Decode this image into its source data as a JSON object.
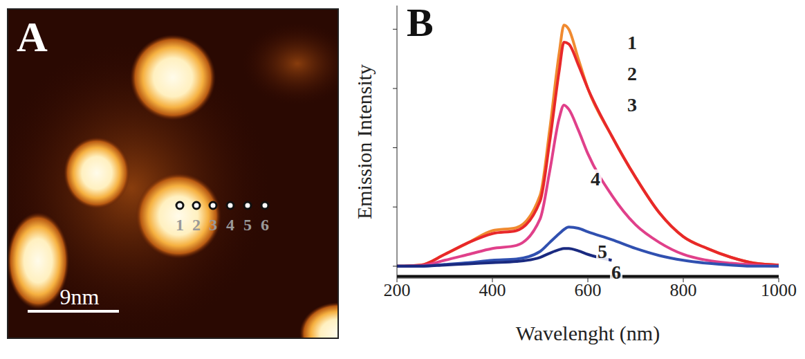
{
  "chart_data": [
    {
      "type": "image",
      "panel": "A",
      "scale_bar": "9nm",
      "point_labels": [
        "1",
        "2",
        "3",
        "4",
        "5",
        "6"
      ]
    },
    {
      "type": "line",
      "panel": "B",
      "x_label": "Wavelenght (nm)",
      "y_label": "Emission Intensity",
      "x": [
        200,
        250,
        300,
        350,
        400,
        450,
        500,
        520,
        540,
        550,
        560,
        580,
        600,
        650,
        700,
        750,
        800,
        850,
        900,
        950,
        1000
      ],
      "series": [
        {
          "name": "1",
          "color": "#f08a30",
          "values": [
            0,
            0.02,
            0.2,
            0.4,
            0.6,
            0.65,
            1.2,
            2.3,
            3.6,
            4.07,
            4.0,
            3.5,
            3.0,
            2.2,
            1.5,
            0.9,
            0.5,
            0.3,
            0.15,
            0.05,
            0.02
          ]
        },
        {
          "name": "2",
          "color": "#e8282a",
          "values": [
            0,
            0.02,
            0.2,
            0.4,
            0.55,
            0.6,
            1.1,
            2.1,
            3.3,
            3.78,
            3.75,
            3.4,
            3.0,
            2.2,
            1.5,
            0.9,
            0.5,
            0.3,
            0.15,
            0.05,
            0.02
          ]
        },
        {
          "name": "3",
          "color": "#e0408a",
          "values": [
            0,
            0.01,
            0.1,
            0.2,
            0.3,
            0.35,
            0.8,
            1.6,
            2.5,
            2.72,
            2.65,
            2.3,
            1.9,
            1.2,
            0.7,
            0.4,
            0.2,
            0.1,
            0.05,
            0.02,
            0
          ]
        },
        {
          "name": "4",
          "color": "#3050b0",
          "values": [
            0,
            0,
            0.03,
            0.06,
            0.1,
            0.12,
            0.25,
            0.4,
            0.55,
            0.62,
            0.66,
            0.64,
            0.58,
            0.45,
            0.3,
            0.18,
            0.1,
            0.05,
            0.02,
            0,
            0
          ]
        },
        {
          "name": "5",
          "color": "#1a2a80",
          "values": [
            0,
            0,
            0.02,
            0.04,
            0.06,
            0.08,
            0.15,
            0.22,
            0.28,
            0.3,
            0.3,
            0.26,
            0.2,
            0.1,
            null,
            null,
            null,
            null,
            null,
            null,
            null
          ]
        },
        {
          "name": "6",
          "color": "#111111",
          "values": [
            -0.17,
            -0.17,
            -0.17,
            -0.17,
            -0.17,
            -0.17,
            -0.17,
            -0.17,
            -0.17,
            -0.17,
            -0.17,
            -0.17,
            -0.17,
            -0.17,
            -0.17,
            -0.17,
            -0.17,
            -0.17,
            -0.17,
            -0.17,
            -0.17
          ]
        }
      ],
      "xlim": [
        200,
        1000
      ],
      "xticks": [
        200,
        400,
        600,
        800,
        1000
      ],
      "ylim": [
        -0.2,
        4.4
      ],
      "yticks": [
        0,
        1,
        2,
        3,
        4
      ],
      "tick_labels": "x"
    }
  ]
}
